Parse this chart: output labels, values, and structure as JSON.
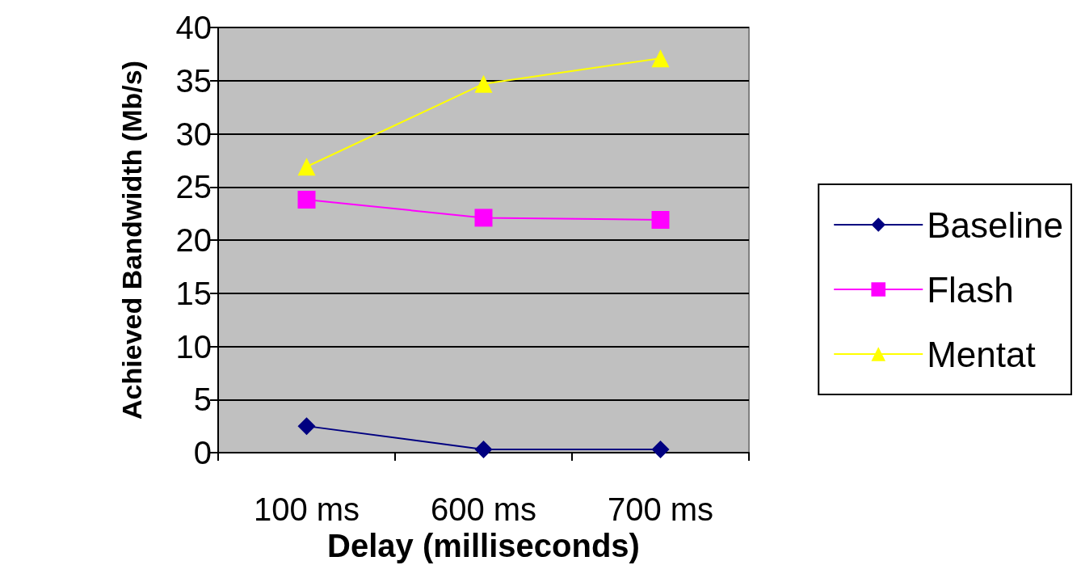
{
  "chart_data": {
    "type": "line",
    "xlabel": "Delay (milliseconds)",
    "ylabel": "Achieved Bandwidth (Mb/s)",
    "categories": [
      "100 ms",
      "600 ms",
      "700 ms"
    ],
    "series": [
      {
        "name": "Baseline",
        "color": "#000080",
        "marker": "diamond",
        "values": [
          2.5,
          0.3,
          0.3
        ]
      },
      {
        "name": "Flash",
        "color": "#ff00ff",
        "marker": "square",
        "values": [
          23.8,
          22.1,
          21.9
        ]
      },
      {
        "name": "Mentat",
        "color": "#ffff00",
        "marker": "triangle",
        "values": [
          26.9,
          34.7,
          37.1
        ]
      }
    ],
    "ylim": [
      0,
      40
    ],
    "yticks": [
      0,
      5,
      10,
      15,
      20,
      25,
      30,
      35,
      40
    ],
    "grid": "y",
    "legend": "right"
  }
}
